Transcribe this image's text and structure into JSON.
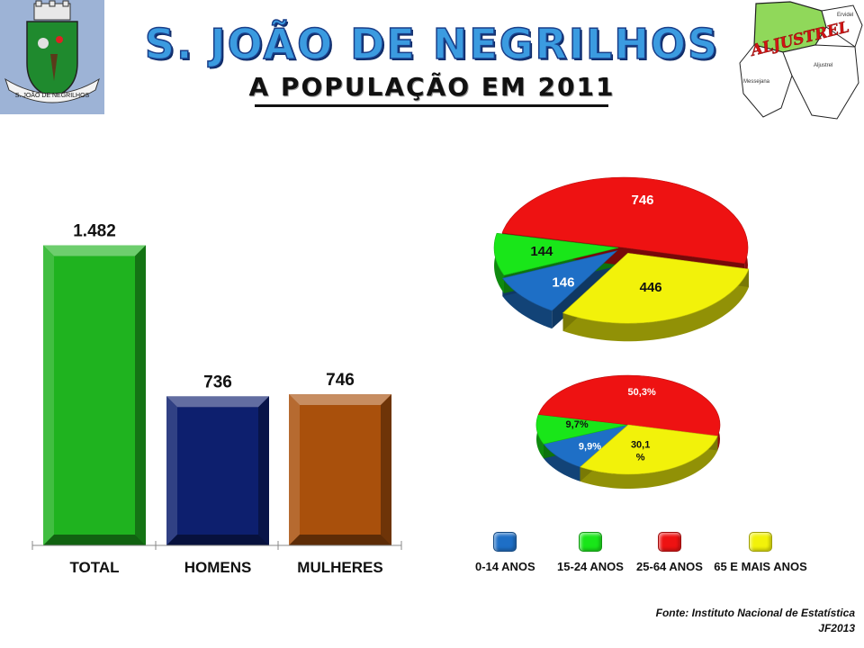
{
  "header": {
    "title": "S. JOÃO DE NEGRILHOS",
    "subtitle": "A POPULAÇÃO EM 2011"
  },
  "crest": {
    "text": "S. JOÃO DE NEGRILHOS"
  },
  "map": {
    "label": "ALJUSTREL",
    "places": [
      "Ervidel",
      "Aljustrel",
      "Messejana"
    ]
  },
  "chart_data": [
    {
      "type": "bar",
      "title": "",
      "categories": [
        "TOTAL",
        "HOMENS",
        "MULHERES"
      ],
      "values": [
        1482,
        736,
        746
      ],
      "value_labels": [
        "1.482",
        "736",
        "746"
      ],
      "colors": [
        "#1fb31f",
        "#0d1f6e",
        "#a9500c"
      ],
      "ylim": [
        0,
        1600
      ],
      "grid": false
    },
    {
      "type": "pie",
      "title": "",
      "categories": [
        "0-14 ANOS",
        "15-24 ANOS",
        "25-64 ANOS",
        "65 E MAIS ANOS"
      ],
      "values": [
        146,
        144,
        746,
        446
      ],
      "value_labels": [
        "146",
        "144",
        "746",
        "446"
      ],
      "colors": [
        "#1e6fc6",
        "#19e619",
        "#ee1212",
        "#f2f20a"
      ]
    },
    {
      "type": "pie",
      "title": "",
      "categories": [
        "0-14 ANOS",
        "15-24 ANOS",
        "25-64 ANOS",
        "65 E MAIS ANOS"
      ],
      "values": [
        9.9,
        9.7,
        50.3,
        30.1
      ],
      "value_labels": [
        "9,9%",
        "9,7%",
        "50,3%",
        "30,1 %"
      ],
      "colors": [
        "#1e6fc6",
        "#19e619",
        "#ee1212",
        "#f2f20a"
      ]
    }
  ],
  "legend": {
    "placement": "bottom-right",
    "items": [
      {
        "label": "0-14 ANOS",
        "color": "#1e6fc6"
      },
      {
        "label": "15-24 ANOS",
        "color": "#19e619"
      },
      {
        "label": "25-64 ANOS",
        "color": "#ee1212"
      },
      {
        "label": "65 E MAIS ANOS",
        "color": "#f2f20a"
      }
    ]
  },
  "footer": {
    "source": "Fonte: Instituto Nacional de Estatística",
    "credit": "JF2013"
  }
}
